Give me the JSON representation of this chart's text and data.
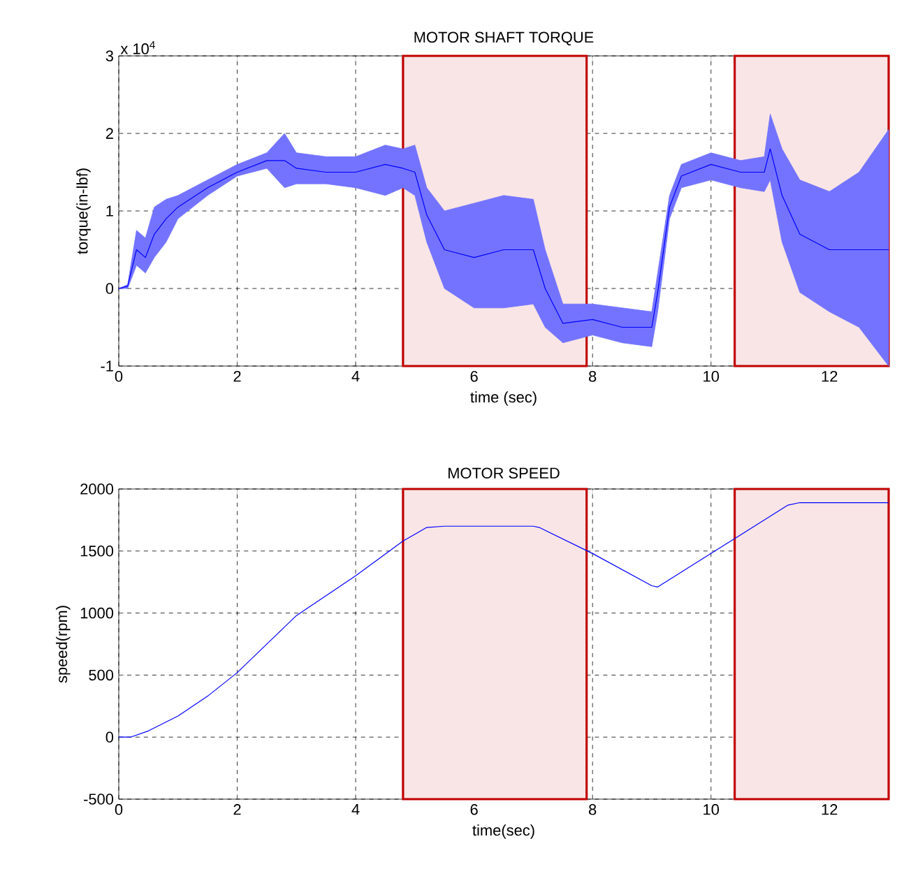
{
  "chart_data": [
    {
      "type": "line",
      "title": "MOTOR SHAFT TORQUE",
      "xlabel": "time (sec)",
      "ylabel": "torque(in-lbf)",
      "annotations": [
        "x 10$^{4}$"
      ],
      "xlim": [
        0,
        13
      ],
      "xticks": [
        0,
        2,
        4,
        6,
        8,
        10,
        12
      ],
      "ylim": [
        -1,
        3
      ],
      "yticks": [
        -1,
        0,
        1,
        2,
        3
      ],
      "grid": true,
      "marker": "none",
      "line_style": "solid",
      "bands": [
        {
          "axis": "x",
          "from": 4.8,
          "to": 7.9,
          "color": "#c00000"
        },
        {
          "axis": "x",
          "from": 10.4,
          "to": 13,
          "color": "#c00000"
        }
      ],
      "series": [
        {
          "color": "#0000ff",
          "x": [
            0,
            0.15,
            0.3,
            0.45,
            0.6,
            0.8,
            1.0,
            1.5,
            2.0,
            2.5,
            2.8,
            3.0,
            3.5,
            4.0,
            4.5,
            4.8,
            5.0,
            5.2,
            5.5,
            6.0,
            6.5,
            7.0,
            7.2,
            7.5,
            8.0,
            8.5,
            9.0,
            9.1,
            9.3,
            9.5,
            10,
            10.5,
            10.9,
            11.0,
            11.2,
            11.5,
            12.0,
            12.5,
            13.0
          ],
          "lower": [
            0,
            0,
            0.3,
            0.2,
            0.4,
            0.6,
            0.9,
            1.2,
            1.45,
            1.55,
            1.3,
            1.35,
            1.35,
            1.3,
            1.2,
            1.3,
            1.2,
            0.6,
            0,
            -0.25,
            -0.25,
            -0.2,
            -0.5,
            -0.7,
            -0.6,
            -0.7,
            -0.75,
            -0.3,
            0.9,
            1.3,
            1.4,
            1.3,
            1.25,
            1.4,
            0.6,
            -0.05,
            -0.3,
            -0.5,
            -1
          ],
          "upper": [
            0,
            0.05,
            0.75,
            0.65,
            1.05,
            1.15,
            1.2,
            1.4,
            1.6,
            1.75,
            2,
            1.75,
            1.7,
            1.7,
            1.85,
            1.8,
            1.85,
            1.3,
            1,
            1.1,
            1.2,
            1.15,
            0.5,
            -0.2,
            -0.2,
            -0.25,
            -0.3,
            0.2,
            1.2,
            1.6,
            1.75,
            1.65,
            1.7,
            2.25,
            1.8,
            1.4,
            1.25,
            1.5,
            2.05
          ],
          "values": [
            0,
            0.03,
            0.5,
            0.4,
            0.7,
            0.9,
            1.05,
            1.3,
            1.5,
            1.65,
            1.65,
            1.55,
            1.5,
            1.5,
            1.6,
            1.55,
            1.5,
            0.95,
            0.5,
            0.4,
            0.5,
            0.5,
            0,
            -0.45,
            -0.4,
            -0.5,
            -0.5,
            -0.05,
            1.05,
            1.45,
            1.6,
            1.5,
            1.5,
            1.8,
            1.2,
            0.7,
            0.5,
            0.5,
            0.5
          ]
        }
      ]
    },
    {
      "type": "line",
      "title": "MOTOR SPEED",
      "xlabel": "time(sec)",
      "ylabel": "speed(rpm)",
      "xlim": [
        0,
        13
      ],
      "xticks": [
        0,
        2,
        4,
        6,
        8,
        10,
        12
      ],
      "ylim": [
        -500,
        2000
      ],
      "yticks": [
        -500,
        0,
        500,
        1000,
        1500,
        2000
      ],
      "grid": true,
      "marker": "none",
      "line_style": "solid",
      "bands": [
        {
          "axis": "x",
          "from": 4.8,
          "to": 7.9,
          "color": "#c00000"
        },
        {
          "axis": "x",
          "from": 10.4,
          "to": 13,
          "color": "#c00000"
        }
      ],
      "series": [
        {
          "color": "#0000ff",
          "x": [
            0,
            0.2,
            0.5,
            1,
            1.5,
            2,
            3,
            4,
            4.8,
            5.2,
            5.5,
            7,
            7.1,
            8,
            9,
            9.1,
            10,
            10.5,
            11,
            11.3,
            11.5,
            12,
            13
          ],
          "values": [
            0,
            0,
            50,
            170,
            330,
            520,
            980,
            1300,
            1580,
            1690,
            1700,
            1700,
            1690,
            1480,
            1220,
            1210,
            1480,
            1630,
            1780,
            1870,
            1890,
            1890,
            1890
          ]
        }
      ]
    }
  ]
}
